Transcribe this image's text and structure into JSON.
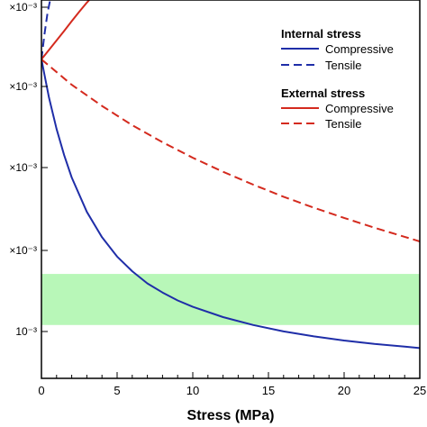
{
  "chart_data": {
    "type": "line",
    "xlabel": "Stress  (MPa)",
    "xlim": [
      0,
      25
    ],
    "x_ticks": [
      0,
      5,
      10,
      15,
      20,
      25
    ],
    "y_tick_labels": [
      "×10⁻³",
      "×10⁻³",
      "×10⁻³",
      "×10⁻³",
      "10⁻³"
    ],
    "ylim": [
      0,
      1
    ],
    "band": {
      "y_from": 0.276,
      "y_to": 0.141,
      "color": "#b8f7b8"
    },
    "legend": {
      "placement": "top-right",
      "groups": [
        {
          "title": "Internal stress",
          "entries": [
            {
              "label": "Compressive",
              "color": "#1f2ea8",
              "dash": "solid"
            },
            {
              "label": "Tensile",
              "color": "#1f2ea8",
              "dash": "dashed"
            }
          ]
        },
        {
          "title": "External stress",
          "entries": [
            {
              "label": "Compressive",
              "color": "#d42a1e",
              "dash": "solid"
            },
            {
              "label": "Tensile",
              "color": "#d42a1e",
              "dash": "dashed"
            }
          ]
        }
      ]
    },
    "series": [
      {
        "group": "internal",
        "kind": "compressive",
        "color": "#1f2ea8",
        "dash": "solid",
        "x": [
          0,
          0.5,
          1,
          1.5,
          2,
          3,
          4,
          5,
          6,
          7,
          8,
          9,
          10,
          12,
          14,
          16,
          18,
          20,
          22,
          24,
          25
        ],
        "y": [
          0.843,
          0.742,
          0.659,
          0.59,
          0.531,
          0.44,
          0.373,
          0.322,
          0.283,
          0.251,
          0.227,
          0.206,
          0.189,
          0.162,
          0.141,
          0.124,
          0.111,
          0.1,
          0.091,
          0.084,
          0.08
        ]
      },
      {
        "group": "internal",
        "kind": "tensile",
        "color": "#1f2ea8",
        "dash": "dashed",
        "x": [
          0,
          0.2,
          0.4,
          0.6,
          0.7
        ],
        "y": [
          0.843,
          0.91,
          0.965,
          1.005,
          1.03
        ]
      },
      {
        "group": "external",
        "kind": "compressive",
        "color": "#d42a1e",
        "dash": "solid",
        "x": [
          0,
          0.5,
          1,
          1.5,
          2,
          2.5,
          3,
          3.5,
          4
        ],
        "y": [
          0.843,
          0.868,
          0.893,
          0.918,
          0.944,
          0.969,
          0.993,
          1.015,
          1.035
        ]
      },
      {
        "group": "external",
        "kind": "tensile",
        "color": "#d42a1e",
        "dash": "dashed",
        "x": [
          0,
          2,
          4,
          6,
          8,
          10,
          12,
          14,
          16,
          18,
          20,
          22,
          24,
          25
        ],
        "y": [
          0.843,
          0.776,
          0.72,
          0.669,
          0.624,
          0.583,
          0.546,
          0.512,
          0.48,
          0.451,
          0.424,
          0.398,
          0.374,
          0.362
        ]
      }
    ]
  }
}
